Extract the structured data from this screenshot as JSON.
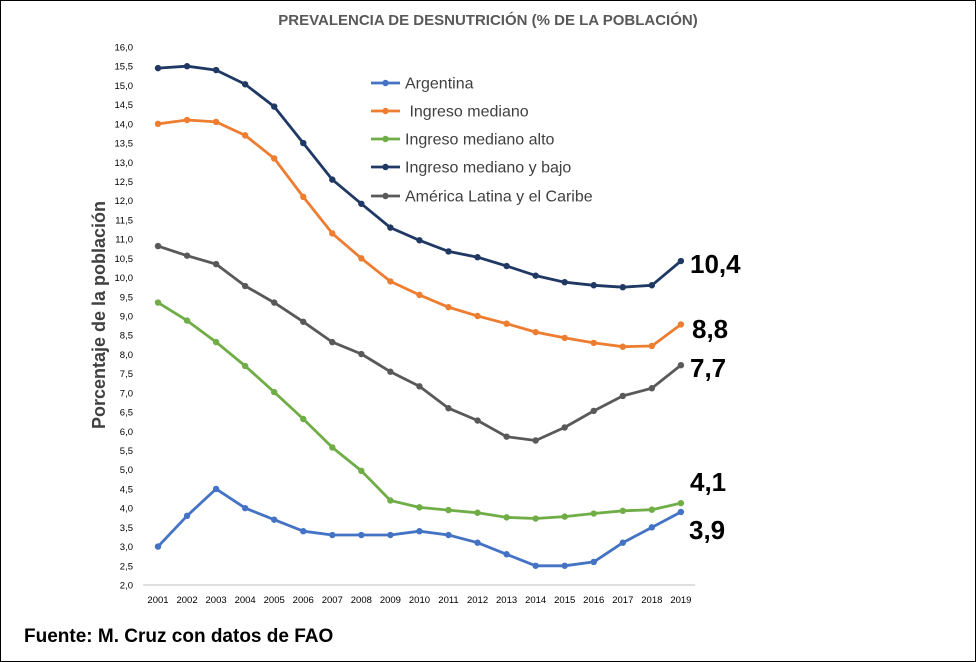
{
  "chart_data": {
    "type": "line",
    "title": "PREVALENCIA DE DESNUTRICIÓN (% DE LA POBLACIÓN)",
    "xlabel": "",
    "ylabel": "Porcentaje de la población",
    "ylim": [
      2.0,
      16.0
    ],
    "ystep": 0.5,
    "grid": false,
    "legend_position": "top-center",
    "x": [
      "2001",
      "2002",
      "2003",
      "2004",
      "2005",
      "2006",
      "2007",
      "2008",
      "2009",
      "2010",
      "2011",
      "2012",
      "2013",
      "2014",
      "2015",
      "2016",
      "2017",
      "2018",
      "2019"
    ],
    "y_tick_labels": [
      "2,0",
      "2,5",
      "3,0",
      "3,5",
      "4,0",
      "4,5",
      "5,0",
      "5,5",
      "6,0",
      "6,5",
      "7,0",
      "7,5",
      "8,0",
      "8,5",
      "9,0",
      "9,5",
      "10,0",
      "10,5",
      "11,0",
      "11,5",
      "12,0",
      "12,5",
      "13,0",
      "13,5",
      "14,0",
      "14,5",
      "15,0",
      "15,5",
      "16,0"
    ],
    "series": [
      {
        "name": "Argentina",
        "color": "#4472C4",
        "values": [
          3.0,
          3.8,
          4.5,
          4.0,
          3.7,
          3.4,
          3.3,
          3.3,
          3.3,
          3.4,
          3.3,
          3.1,
          2.8,
          2.5,
          2.5,
          2.6,
          3.1,
          3.5,
          3.9
        ],
        "end_label": "3,9"
      },
      {
        "name": " Ingreso mediano",
        "color": "#ED7D31",
        "values": [
          14.0,
          14.1,
          14.05,
          13.7,
          13.1,
          12.1,
          11.15,
          10.5,
          9.9,
          9.55,
          9.23,
          9.0,
          8.8,
          8.58,
          8.43,
          8.3,
          8.2,
          8.22,
          8.78
        ],
        "end_label": "8,8"
      },
      {
        "name": "Ingreso mediano alto",
        "color": "#70AD47",
        "values": [
          9.35,
          8.88,
          8.32,
          7.7,
          7.02,
          6.32,
          5.58,
          4.97,
          4.2,
          4.02,
          3.95,
          3.88,
          3.76,
          3.73,
          3.78,
          3.86,
          3.93,
          3.96,
          4.13
        ],
        "end_label": "4,1"
      },
      {
        "name": "Ingreso mediano y bajo",
        "color": "#203864",
        "values": [
          15.45,
          15.5,
          15.4,
          15.03,
          14.45,
          13.5,
          12.55,
          11.92,
          11.3,
          10.97,
          10.68,
          10.53,
          10.3,
          10.05,
          9.88,
          9.8,
          9.75,
          9.8,
          10.43
        ],
        "end_label": "10,4"
      },
      {
        "name": "América Latina y el Caribe",
        "color": "#595959",
        "values": [
          10.82,
          10.57,
          10.35,
          9.78,
          9.35,
          8.85,
          8.32,
          8.01,
          7.55,
          7.17,
          6.6,
          6.28,
          5.86,
          5.76,
          6.1,
          6.53,
          6.92,
          7.12,
          7.72
        ],
        "end_label": "7,7"
      }
    ]
  },
  "footer": {
    "source": "Fuente: M. Cruz con datos de FAO"
  }
}
